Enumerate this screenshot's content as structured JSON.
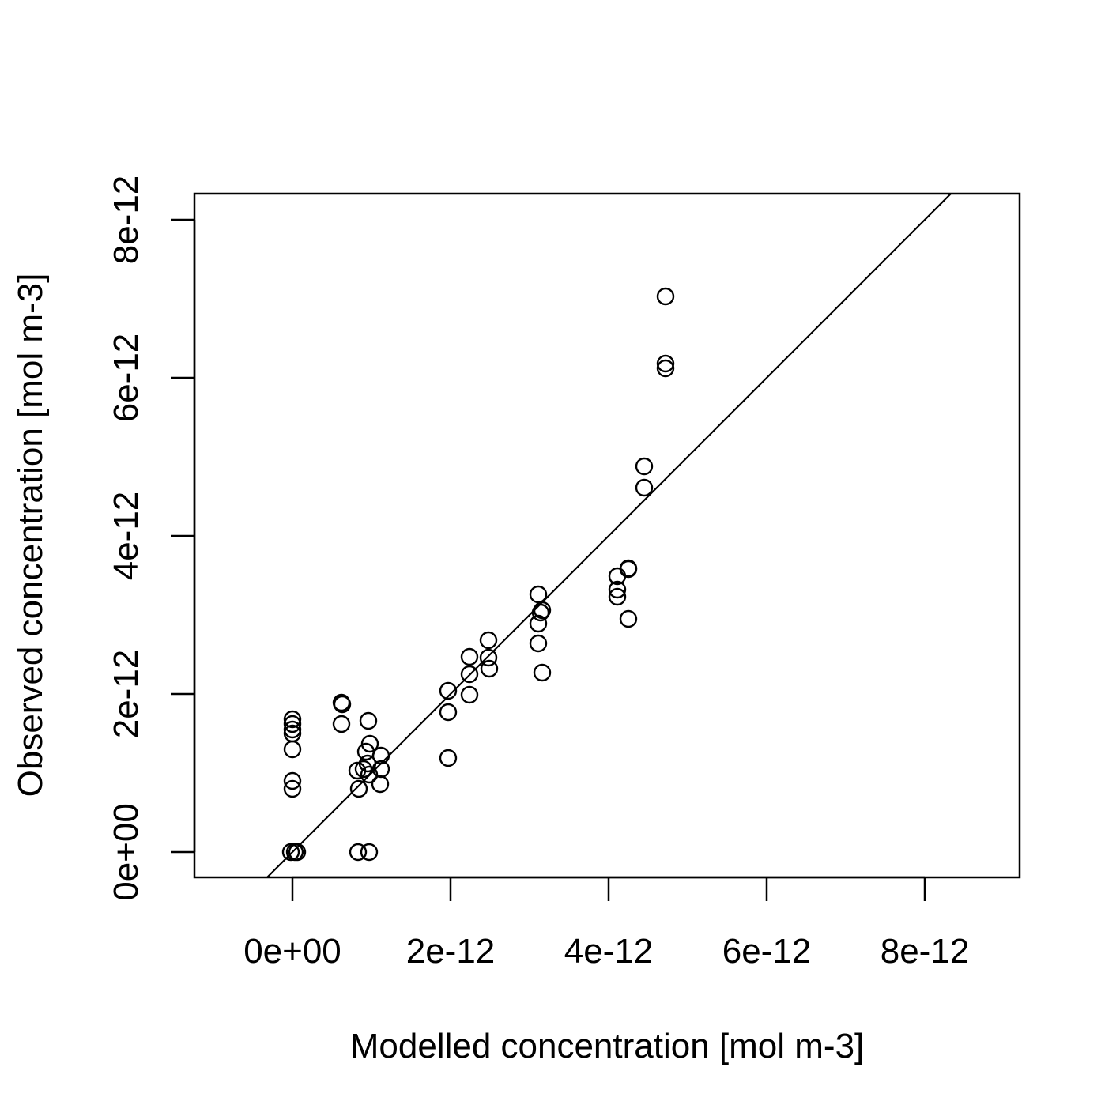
{
  "chart_data": {
    "type": "scatter",
    "xlabel": "Modelled concentration [mol m-3]",
    "ylabel": "Observed concentration [mol m-3]",
    "xlim": [
      -1.24e-12,
      9.2e-12
    ],
    "ylim": [
      -3.2e-13,
      8.33e-12
    ],
    "x_ticks": [
      0,
      2e-12,
      4e-12,
      6e-12,
      8e-12
    ],
    "x_tick_labels": [
      "0e+00",
      "2e-12",
      "4e-12",
      "6e-12",
      "8e-12"
    ],
    "y_ticks": [
      0,
      2e-12,
      4e-12,
      6e-12,
      8e-12
    ],
    "y_tick_labels": [
      "0e+00",
      "2e-12",
      "4e-12",
      "6e-12",
      "8e-12"
    ],
    "reference_line": {
      "type": "identity",
      "slope": 1,
      "intercept": 0
    },
    "grid": false,
    "marker": "open-circle",
    "points": [
      {
        "x": 0.0,
        "y": 1.68e-12
      },
      {
        "x": 0.0,
        "y": 1.62e-12
      },
      {
        "x": 0.0,
        "y": 1.55e-12
      },
      {
        "x": 0.0,
        "y": 1.5e-12
      },
      {
        "x": 0.0,
        "y": 1.3e-12
      },
      {
        "x": 0.0,
        "y": 9e-13
      },
      {
        "x": 0.0,
        "y": 8e-13
      },
      {
        "x": -2e-14,
        "y": 0.0
      },
      {
        "x": 3e-14,
        "y": 0.0
      },
      {
        "x": 6e-14,
        "y": 0.0
      },
      {
        "x": 6.2e-13,
        "y": 1.89e-12
      },
      {
        "x": 6.3e-13,
        "y": 1.87e-12
      },
      {
        "x": 6.2e-13,
        "y": 1.62e-12
      },
      {
        "x": 9.6e-13,
        "y": 1.66e-12
      },
      {
        "x": 9.8e-13,
        "y": 1.37e-12
      },
      {
        "x": 9.3e-13,
        "y": 1.27e-12
      },
      {
        "x": 1.12e-12,
        "y": 1.22e-12
      },
      {
        "x": 9.5e-13,
        "y": 1.12e-12
      },
      {
        "x": 9e-13,
        "y": 1.05e-12
      },
      {
        "x": 8.2e-13,
        "y": 1.03e-12
      },
      {
        "x": 1.12e-12,
        "y": 1.05e-12
      },
      {
        "x": 9.7e-13,
        "y": 9.8e-13
      },
      {
        "x": 1.11e-12,
        "y": 8.6e-13
      },
      {
        "x": 8.4e-13,
        "y": 8e-13
      },
      {
        "x": 8.3e-13,
        "y": 0.0
      },
      {
        "x": 9.7e-13,
        "y": 0.0
      },
      {
        "x": 1.97e-12,
        "y": 2.04e-12
      },
      {
        "x": 1.97e-12,
        "y": 1.77e-12
      },
      {
        "x": 1.97e-12,
        "y": 1.19e-12
      },
      {
        "x": 2.24e-12,
        "y": 2.47e-12
      },
      {
        "x": 2.24e-12,
        "y": 2.25e-12
      },
      {
        "x": 2.24e-12,
        "y": 1.99e-12
      },
      {
        "x": 2.48e-12,
        "y": 2.68e-12
      },
      {
        "x": 2.48e-12,
        "y": 2.46e-12
      },
      {
        "x": 2.49e-12,
        "y": 2.32e-12
      },
      {
        "x": 3.11e-12,
        "y": 3.26e-12
      },
      {
        "x": 3.16e-12,
        "y": 3.06e-12
      },
      {
        "x": 3.14e-12,
        "y": 3.03e-12
      },
      {
        "x": 3.11e-12,
        "y": 2.89e-12
      },
      {
        "x": 3.11e-12,
        "y": 2.64e-12
      },
      {
        "x": 3.16e-12,
        "y": 2.27e-12
      },
      {
        "x": 4.11e-12,
        "y": 3.49e-12
      },
      {
        "x": 4.11e-12,
        "y": 3.32e-12
      },
      {
        "x": 4.11e-12,
        "y": 3.23e-12
      },
      {
        "x": 4.25e-12,
        "y": 3.59e-12
      },
      {
        "x": 4.25e-12,
        "y": 3.58e-12
      },
      {
        "x": 4.25e-12,
        "y": 2.95e-12
      },
      {
        "x": 4.45e-12,
        "y": 4.88e-12
      },
      {
        "x": 4.45e-12,
        "y": 4.61e-12
      },
      {
        "x": 4.72e-12,
        "y": 7.03e-12
      },
      {
        "x": 4.72e-12,
        "y": 6.18e-12
      },
      {
        "x": 4.72e-12,
        "y": 6.12e-12
      }
    ]
  }
}
